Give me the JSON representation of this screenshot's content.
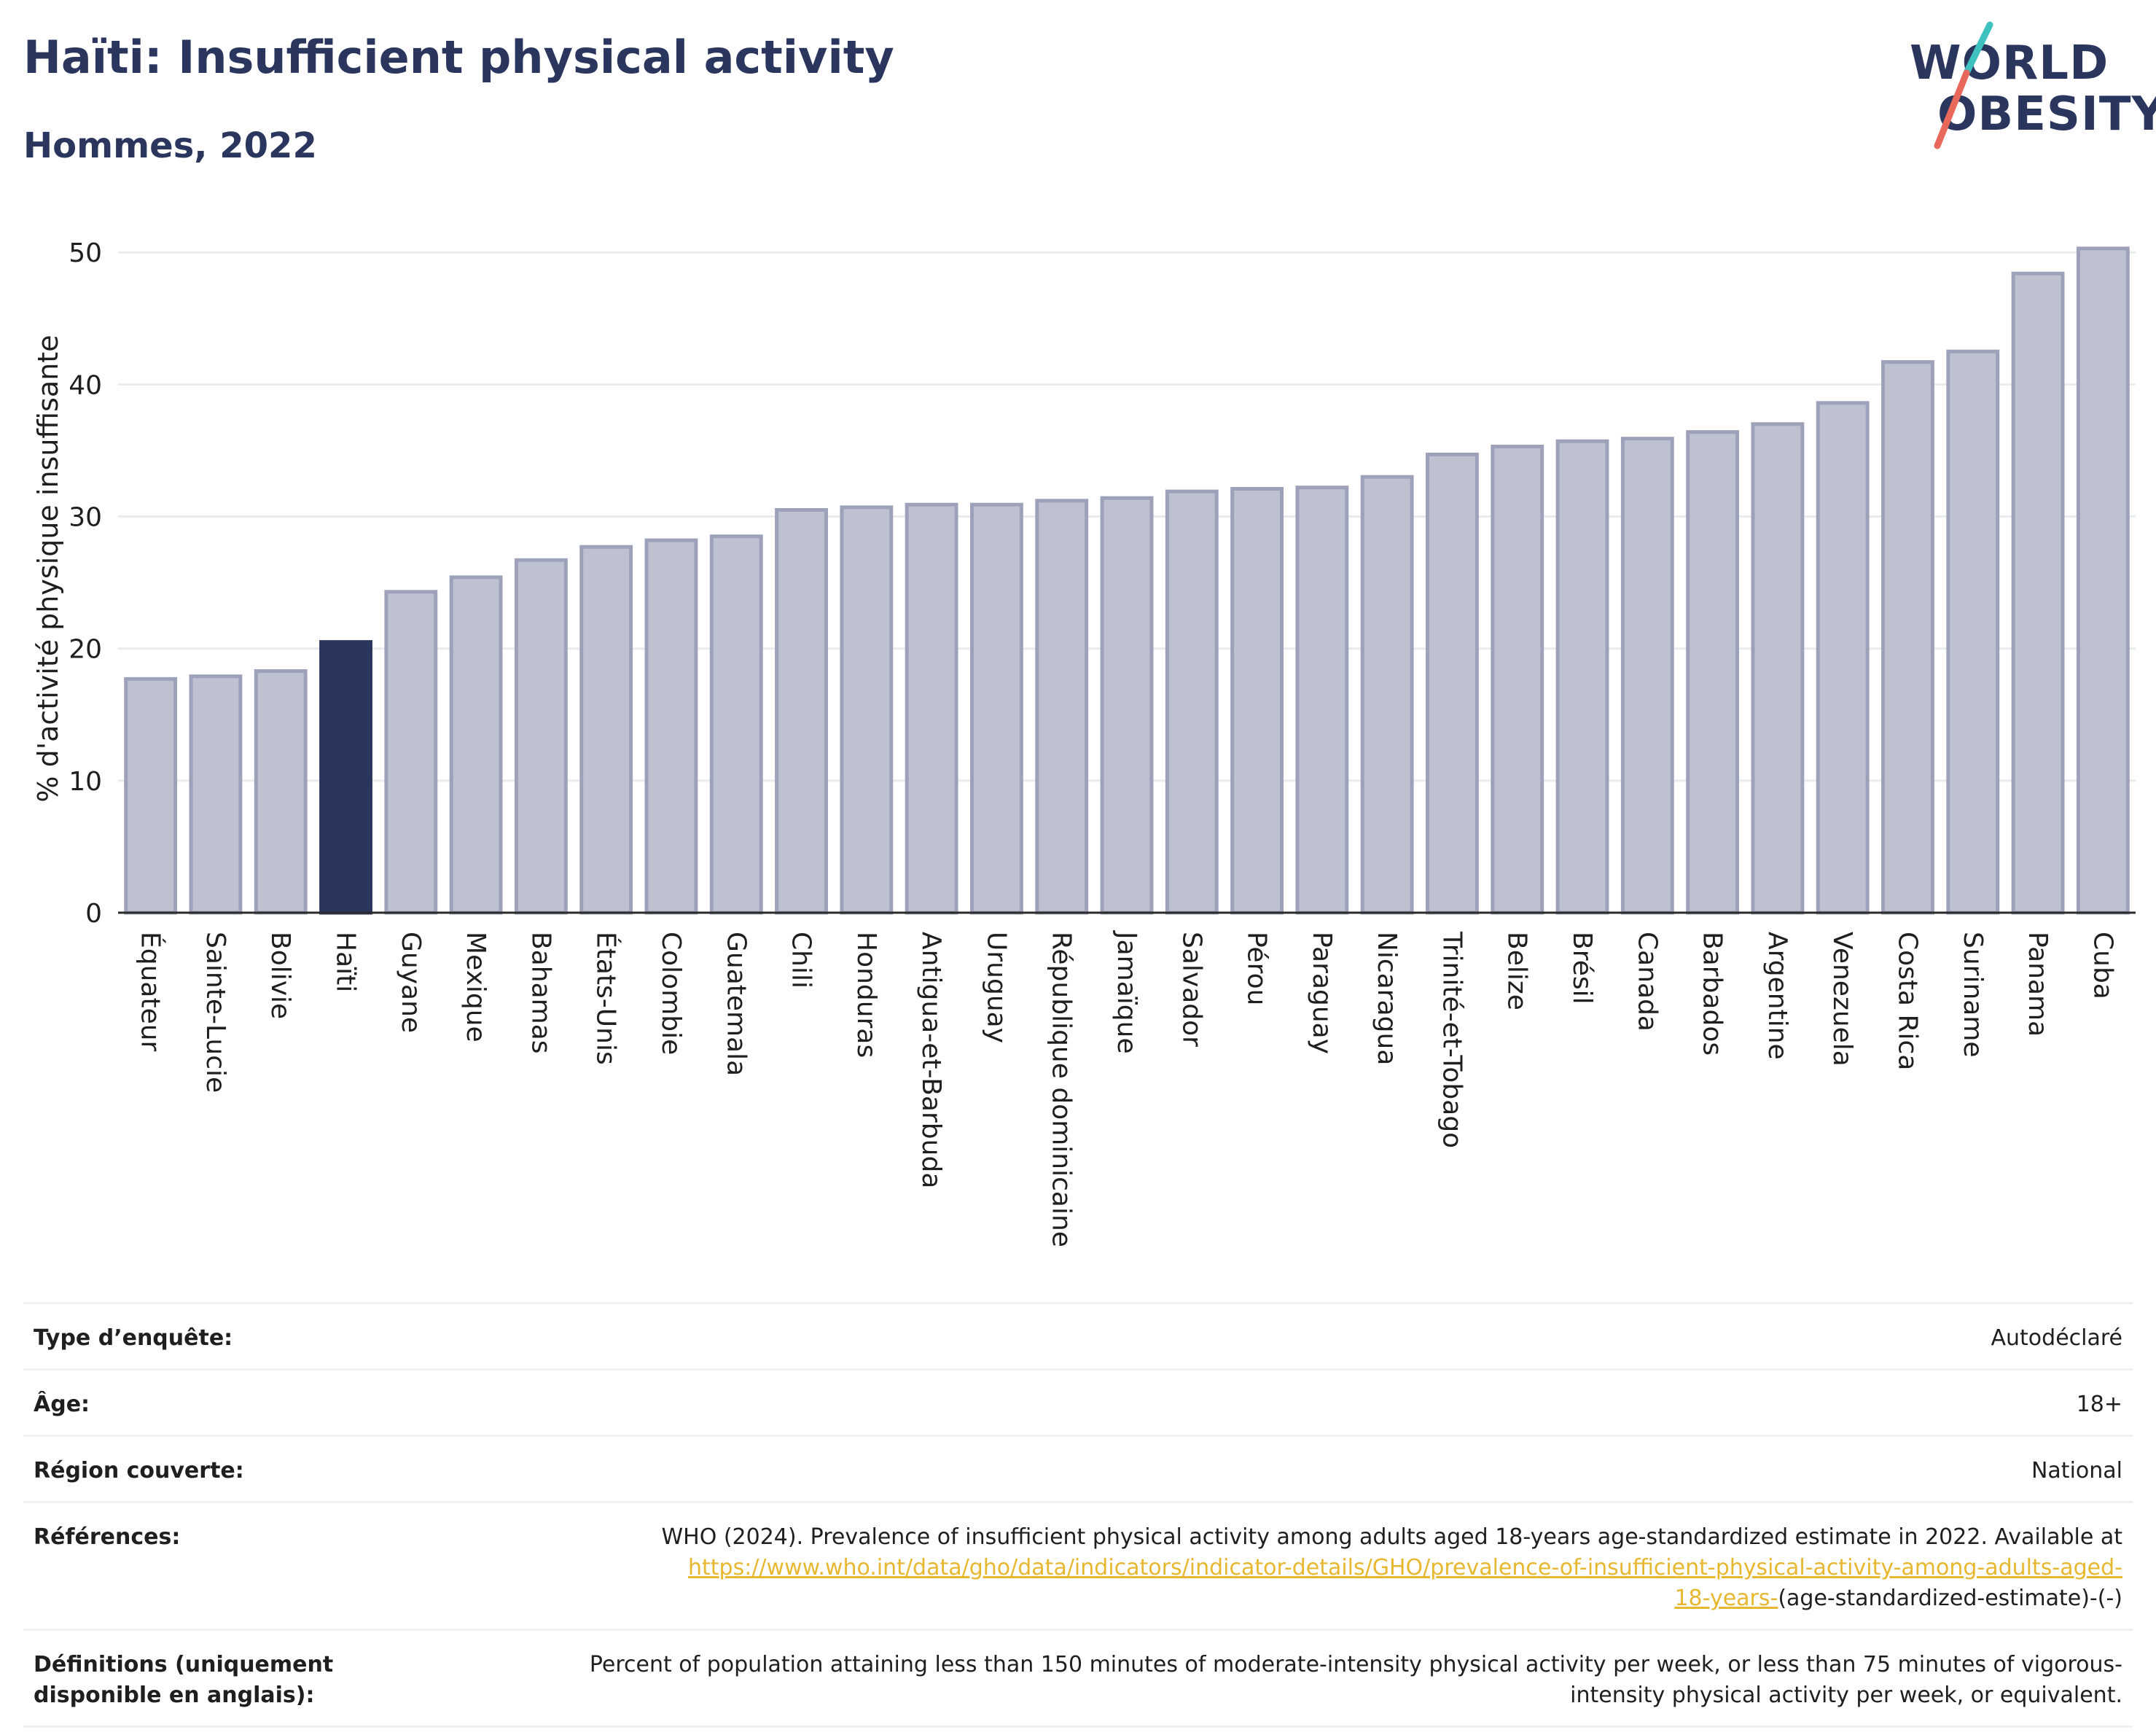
{
  "title": "Haïti: Insufficient physical activity",
  "subtitle": "Hommes, 2022",
  "logo": {
    "line1": "WORLD",
    "line2": "OBESITY"
  },
  "colors": {
    "highlight": "#2b365e",
    "bar_fill": "#bec1cf",
    "bar_stroke": "#9da2ba",
    "grid": "#e9ebee",
    "link": "#e8b730"
  },
  "chart_data": {
    "type": "bar",
    "ylabel": "% d'activité physique insuffisante",
    "xlabel": "",
    "ylim": [
      0,
      52
    ],
    "yticks": [
      0,
      10,
      20,
      30,
      40,
      50
    ],
    "grid": true,
    "highlight": "Haïti",
    "categories": [
      "Équateur",
      "Sainte-Lucie",
      "Bolivie",
      "Haïti",
      "Guyane",
      "Mexique",
      "Bahamas",
      "États-Unis",
      "Colombie",
      "Guatemala",
      "Chili",
      "Honduras",
      "Antigua-et-Barbuda",
      "Uruguay",
      "République dominicaine",
      "Jamaïque",
      "Salvador",
      "Pérou",
      "Paraguay",
      "Nicaragua",
      "Trinité-et-Tobago",
      "Belize",
      "Brésil",
      "Canada",
      "Barbados",
      "Argentine",
      "Venezuela",
      "Costa Rica",
      "Suriname",
      "Panama",
      "Cuba"
    ],
    "values": [
      17.7,
      17.9,
      18.3,
      20.5,
      24.3,
      25.4,
      26.7,
      27.7,
      28.2,
      28.5,
      30.5,
      30.7,
      30.9,
      30.9,
      31.2,
      31.4,
      31.9,
      32.1,
      32.2,
      33.0,
      34.7,
      35.3,
      35.7,
      35.9,
      36.4,
      37.0,
      38.6,
      41.7,
      42.5,
      48.4,
      50.3
    ]
  },
  "info": {
    "survey_label": "Type d’enquête:",
    "survey_value": "Autodéclaré",
    "age_label": "Âge:",
    "age_value": "18+",
    "region_label": "Région couverte:",
    "region_value": "National",
    "refs_label": "Références:",
    "refs_text": "WHO (2024). Prevalence of insufficient physical activity among adults aged 18-years age-standardized estimate in 2022. Available at",
    "refs_link_1": "https://www.who.int/data/gho/data/indicators/indicator-details/GHO/prevalence-of-insufficient-physical-activity-among-adults-aged-",
    "refs_link_2": "18-years-",
    "refs_tail": "(age-standardized-estimate)-(-)",
    "defs_label": "Définitions (uniquement disponible en anglais):",
    "defs_text": "Percent of population attaining less than 150 minutes of moderate-intensity physical activity per week, or less than 75 minutes of vigorous-intensity physical activity per week, or equivalent."
  }
}
